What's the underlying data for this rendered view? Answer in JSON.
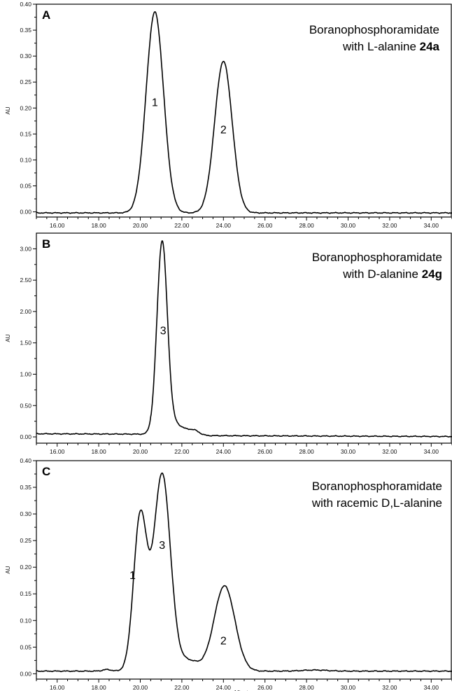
{
  "chart_data": [
    {
      "type": "line",
      "panel_label": "A",
      "title_lines": [
        [
          {
            "text": "Boranophosphoramidate",
            "bold": false
          }
        ],
        [
          {
            "text": "with L-alanine ",
            "bold": false
          },
          {
            "text": "24a",
            "bold": true
          }
        ]
      ],
      "xlabel": "",
      "ylabel": "AU",
      "xlim": [
        15.0,
        35.0
      ],
      "ylim": [
        -0.01,
        0.4
      ],
      "xticks": [
        "16.00",
        "18.00",
        "20.00",
        "22.00",
        "24.00",
        "26.00",
        "28.00",
        "30.00",
        "32.00",
        "34.00"
      ],
      "yticks": [
        "0.00",
        "0.05",
        "0.10",
        "0.15",
        "0.20",
        "0.25",
        "0.30",
        "0.35",
        "0.40"
      ],
      "baseline": -0.002,
      "peaks": [
        {
          "label": "1",
          "x": 20.7,
          "y": 0.385
        },
        {
          "label": "2",
          "x": 24.0,
          "y": 0.29
        }
      ]
    },
    {
      "type": "line",
      "panel_label": "B",
      "title_lines": [
        [
          {
            "text": "Boranophosphoramidate",
            "bold": false
          }
        ],
        [
          {
            "text": "with D-alanine ",
            "bold": false
          },
          {
            "text": "24g",
            "bold": true
          }
        ]
      ],
      "xlabel": "",
      "ylabel": "AU",
      "xlim": [
        15.0,
        35.0
      ],
      "ylim": [
        -0.1,
        3.25
      ],
      "xticks": [
        "16.00",
        "18.00",
        "20.00",
        "22.00",
        "24.00",
        "26.00",
        "28.00",
        "30.00",
        "32.00",
        "34.00"
      ],
      "yticks": [
        "0.00",
        "0.50",
        "1.00",
        "1.50",
        "2.00",
        "2.50",
        "3.00"
      ],
      "baseline": 0.05,
      "peaks": [
        {
          "label": "3",
          "x": 21.1,
          "y": 3.1
        }
      ]
    },
    {
      "type": "line",
      "panel_label": "C",
      "title_lines": [
        [
          {
            "text": "Boranophosphoramidate",
            "bold": false
          }
        ],
        [
          {
            "text": "with racemic D,L-alanine",
            "bold": false
          }
        ]
      ],
      "xlabel": "Minutes",
      "ylabel": "AU",
      "xlim": [
        15.0,
        35.0
      ],
      "ylim": [
        -0.01,
        0.4
      ],
      "xticks": [
        "16.00",
        "18.00",
        "20.00",
        "22.00",
        "24.00",
        "26.00",
        "28.00",
        "30.00",
        "32.00",
        "34.00"
      ],
      "yticks": [
        "0.00",
        "0.05",
        "0.10",
        "0.15",
        "0.20",
        "0.25",
        "0.30",
        "0.35",
        "0.40"
      ],
      "baseline": 0.005,
      "peaks": [
        {
          "label": "1",
          "x": 20.0,
          "y": 0.3
        },
        {
          "label": "3",
          "x": 21.05,
          "y": 0.385
        },
        {
          "label": "2",
          "x": 24.0,
          "y": 0.165
        }
      ]
    }
  ]
}
